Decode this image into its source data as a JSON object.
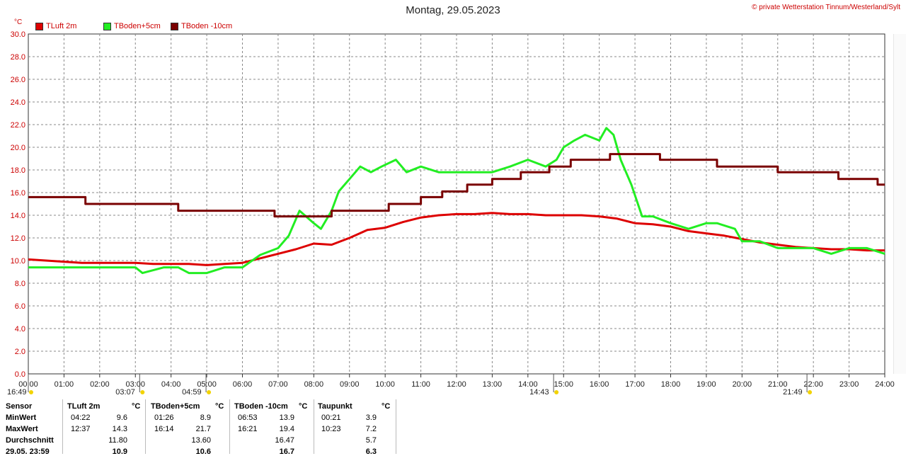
{
  "header": {
    "title": "Montag, 29.05.2023",
    "copyright": "© private Wetterstation Tinnum/Westerland/Sylt",
    "unit": "°C"
  },
  "legend": [
    {
      "label": "TLuft 2m",
      "color": "#dd0000"
    },
    {
      "label": "TBoden+5cm",
      "color": "#22ee22"
    },
    {
      "label": "TBoden -10cm",
      "color": "#7a0000"
    }
  ],
  "chart_data": {
    "type": "line",
    "title": "Montag, 29.05.2023",
    "ylabel": "°C",
    "xlim": [
      0,
      24
    ],
    "ylim": [
      0,
      30
    ],
    "grid": true,
    "y_ticks": [
      "0.0",
      "2.0",
      "4.0",
      "6.0",
      "8.0",
      "10.0",
      "12.0",
      "14.0",
      "16.0",
      "18.0",
      "20.0",
      "22.0",
      "24.0",
      "26.0",
      "28.0",
      "30.0"
    ],
    "x_ticks": [
      "00:00",
      "01:00",
      "02:00",
      "03:00",
      "04:00",
      "05:00",
      "06:00",
      "07:00",
      "08:00",
      "09:00",
      "10:00",
      "11:00",
      "12:00",
      "13:00",
      "14:00",
      "15:00",
      "16:00",
      "17:00",
      "18:00",
      "19:00",
      "20:00",
      "21:00",
      "22:00",
      "23:00",
      "24:00"
    ],
    "series": [
      {
        "name": "TLuft 2m",
        "color": "#dd0000",
        "x": [
          0,
          0.5,
          1,
          1.5,
          2,
          2.5,
          3,
          3.5,
          4,
          4.5,
          5,
          5.5,
          6,
          6.5,
          7,
          7.5,
          8,
          8.5,
          9,
          9.5,
          10,
          10.5,
          11,
          11.5,
          12,
          12.5,
          13,
          13.5,
          14,
          14.5,
          15,
          15.5,
          16,
          16.5,
          17,
          17.5,
          18,
          18.5,
          19,
          19.5,
          20,
          20.5,
          21,
          21.5,
          22,
          22.5,
          23,
          23.5,
          24
        ],
        "y": [
          10.1,
          10.0,
          9.9,
          9.8,
          9.8,
          9.8,
          9.8,
          9.7,
          9.7,
          9.7,
          9.6,
          9.7,
          9.8,
          10.2,
          10.6,
          11.0,
          11.5,
          11.4,
          12.0,
          12.7,
          12.9,
          13.4,
          13.8,
          14.0,
          14.1,
          14.1,
          14.2,
          14.1,
          14.1,
          14.0,
          14.0,
          14.0,
          13.9,
          13.7,
          13.3,
          13.2,
          13.0,
          12.6,
          12.4,
          12.2,
          11.9,
          11.6,
          11.4,
          11.2,
          11.1,
          11.0,
          11.0,
          10.9,
          10.9
        ]
      },
      {
        "name": "TBoden+5cm",
        "color": "#22ee22",
        "x": [
          0,
          1,
          1.4,
          2,
          3,
          3.2,
          3.8,
          4,
          4.2,
          4.5,
          5,
          5.5,
          6,
          6.5,
          7,
          7.3,
          7.6,
          8,
          8.2,
          8.5,
          8.7,
          9,
          9.3,
          9.6,
          9.9,
          10.3,
          10.6,
          11,
          11.5,
          12,
          12.5,
          13,
          13.5,
          14,
          14.5,
          14.8,
          15,
          15.3,
          15.6,
          16,
          16.2,
          16.4,
          16.6,
          16.9,
          17.2,
          17.5,
          18,
          18.5,
          19,
          19.3,
          19.8,
          20,
          20.5,
          21,
          21.5,
          22,
          22.5,
          23,
          23.5,
          24
        ],
        "y": [
          9.4,
          9.4,
          9.4,
          9.4,
          9.4,
          8.9,
          9.4,
          9.4,
          9.4,
          8.9,
          8.9,
          9.4,
          9.4,
          10.5,
          11.1,
          12.2,
          14.4,
          13.3,
          12.8,
          14.4,
          16.1,
          17.2,
          18.3,
          17.8,
          18.3,
          18.9,
          17.8,
          18.3,
          17.8,
          17.8,
          17.8,
          17.8,
          18.3,
          18.9,
          18.3,
          18.9,
          20.0,
          20.6,
          21.1,
          20.6,
          21.7,
          21.1,
          18.9,
          16.7,
          13.9,
          13.9,
          13.3,
          12.8,
          13.3,
          13.3,
          12.8,
          11.7,
          11.7,
          11.1,
          11.1,
          11.1,
          10.6,
          11.1,
          11.1,
          10.6
        ]
      },
      {
        "name": "TBoden -10cm",
        "color": "#7a0000",
        "x": [
          0,
          1.6,
          1.6,
          4.2,
          4.2,
          6.9,
          6.9,
          8.5,
          8.5,
          10.1,
          10.1,
          11.0,
          11.0,
          11.6,
          11.6,
          12.3,
          12.3,
          13.0,
          13.0,
          13.8,
          13.8,
          14.6,
          14.6,
          15.2,
          15.2,
          16.3,
          16.3,
          17.7,
          17.7,
          19.3,
          19.3,
          21.0,
          21.0,
          22.7,
          22.7,
          23.8,
          23.8,
          24
        ],
        "y": [
          15.6,
          15.6,
          15.0,
          15.0,
          14.4,
          14.4,
          13.9,
          13.9,
          14.4,
          14.4,
          15.0,
          15.0,
          15.6,
          15.6,
          16.1,
          16.1,
          16.7,
          16.7,
          17.2,
          17.2,
          17.8,
          17.8,
          18.3,
          18.3,
          18.9,
          18.9,
          19.4,
          19.4,
          18.9,
          18.9,
          18.3,
          18.3,
          17.8,
          17.8,
          17.2,
          17.2,
          16.7,
          16.7
        ]
      }
    ]
  },
  "markers": {
    "row1": [
      {
        "text": "16:49",
        "hour": 0.0
      },
      {
        "text": "03:07",
        "hour": 3.12
      },
      {
        "text": "04:59",
        "hour": 4.98
      },
      {
        "text": "14:43",
        "hour": 14.72
      },
      {
        "text": "21:49",
        "hour": 21.82
      }
    ]
  },
  "stats": {
    "headers": {
      "sensor": "Sensor",
      "s1": "TLuft 2m",
      "s2": "TBoden+5cm",
      "s3": "TBoden -10cm",
      "s4": "Taupunkt",
      "unit": "°C"
    },
    "rows": [
      {
        "label": "MinWert",
        "t1": "04:22",
        "v1": "9.6",
        "t2": "01:26",
        "v2": "8.9",
        "t3": "06:53",
        "v3": "13.9",
        "t4": "00:21",
        "v4": "3.9"
      },
      {
        "label": "MaxWert",
        "t1": "12:37",
        "v1": "14.3",
        "t2": "16:14",
        "v2": "21.7",
        "t3": "16:21",
        "v3": "19.4",
        "t4": "10:23",
        "v4": "7.2"
      },
      {
        "label": "Durchschnitt",
        "t1": "",
        "v1": "11.80",
        "t2": "",
        "v2": "13.60",
        "t3": "",
        "v3": "16.47",
        "t4": "",
        "v4": "5.7"
      },
      {
        "label": "29.05. 23:59",
        "t1": "",
        "v1": "10.9",
        "t2": "",
        "v2": "10.6",
        "t3": "",
        "v3": "16.7",
        "t4": "",
        "v4": "6.3"
      }
    ]
  }
}
